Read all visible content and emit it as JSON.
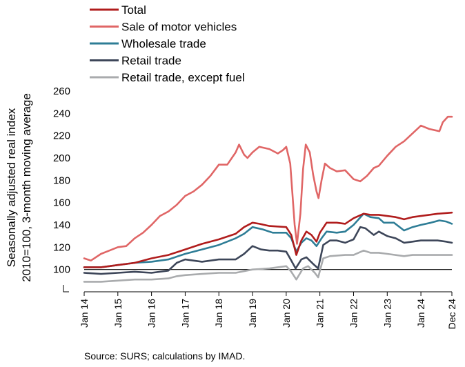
{
  "chart_data": {
    "type": "line",
    "ylabel_lines": [
      "Seasonally adjusted real index",
      "2010=100, 3-month moving average"
    ],
    "ylim": [
      80,
      260
    ],
    "y_ticks": [
      100,
      120,
      140,
      160,
      180,
      200,
      220,
      240,
      260
    ],
    "x_ticks": [
      "Jan 14",
      "Jan 15",
      "Jan 16",
      "Jan 17",
      "Jan 18",
      "Jan 19",
      "Jan 20",
      "Jan 21",
      "Jan 22",
      "Jan 23",
      "Jan 24",
      "Dec 24"
    ],
    "x_tick_positions": [
      2014.0,
      2015.0,
      2016.0,
      2017.0,
      2018.0,
      2019.0,
      2020.0,
      2021.0,
      2022.0,
      2023.0,
      2024.0,
      2024.92
    ],
    "xlim": [
      2014.0,
      2024.92
    ],
    "reference_line": 100,
    "legend_position": "top-left",
    "grid": false,
    "series": [
      {
        "name": "Total",
        "color": "#b01c1c",
        "points": [
          [
            2014.0,
            102
          ],
          [
            2014.5,
            102
          ],
          [
            2015.0,
            104
          ],
          [
            2015.5,
            106
          ],
          [
            2016.0,
            110
          ],
          [
            2016.5,
            113
          ],
          [
            2017.0,
            118
          ],
          [
            2017.5,
            123
          ],
          [
            2018.0,
            127
          ],
          [
            2018.5,
            132
          ],
          [
            2018.75,
            138
          ],
          [
            2019.0,
            142
          ],
          [
            2019.2,
            141
          ],
          [
            2019.5,
            139
          ],
          [
            2020.0,
            138
          ],
          [
            2020.15,
            131
          ],
          [
            2020.3,
            113
          ],
          [
            2020.45,
            126
          ],
          [
            2020.6,
            134
          ],
          [
            2020.75,
            131
          ],
          [
            2020.9,
            125
          ],
          [
            2021.0,
            133
          ],
          [
            2021.2,
            142
          ],
          [
            2021.5,
            142
          ],
          [
            2021.75,
            141
          ],
          [
            2022.0,
            146
          ],
          [
            2022.3,
            150
          ],
          [
            2022.5,
            149
          ],
          [
            2022.75,
            149
          ],
          [
            2023.0,
            148
          ],
          [
            2023.25,
            147
          ],
          [
            2023.5,
            145
          ],
          [
            2023.75,
            147
          ],
          [
            2024.0,
            148
          ],
          [
            2024.25,
            149
          ],
          [
            2024.5,
            150
          ],
          [
            2024.92,
            151
          ]
        ]
      },
      {
        "name": "Sale of motor vehicles",
        "color": "#e06666",
        "points": [
          [
            2014.0,
            110
          ],
          [
            2014.2,
            108
          ],
          [
            2014.5,
            114
          ],
          [
            2014.75,
            117
          ],
          [
            2015.0,
            120
          ],
          [
            2015.25,
            121
          ],
          [
            2015.5,
            128
          ],
          [
            2015.75,
            133
          ],
          [
            2016.0,
            140
          ],
          [
            2016.25,
            148
          ],
          [
            2016.5,
            152
          ],
          [
            2016.75,
            158
          ],
          [
            2017.0,
            166
          ],
          [
            2017.25,
            170
          ],
          [
            2017.5,
            176
          ],
          [
            2017.75,
            184
          ],
          [
            2018.0,
            194
          ],
          [
            2018.25,
            194
          ],
          [
            2018.5,
            205
          ],
          [
            2018.6,
            212
          ],
          [
            2018.75,
            203
          ],
          [
            2018.85,
            200
          ],
          [
            2019.0,
            205
          ],
          [
            2019.2,
            210
          ],
          [
            2019.5,
            208
          ],
          [
            2019.75,
            204
          ],
          [
            2019.9,
            207
          ],
          [
            2020.0,
            210
          ],
          [
            2020.12,
            195
          ],
          [
            2020.25,
            140
          ],
          [
            2020.32,
            123
          ],
          [
            2020.42,
            150
          ],
          [
            2020.5,
            190
          ],
          [
            2020.58,
            212
          ],
          [
            2020.7,
            205
          ],
          [
            2020.8,
            185
          ],
          [
            2020.9,
            170
          ],
          [
            2020.96,
            164
          ],
          [
            2021.05,
            180
          ],
          [
            2021.15,
            195
          ],
          [
            2021.3,
            191
          ],
          [
            2021.5,
            188
          ],
          [
            2021.75,
            189
          ],
          [
            2022.0,
            181
          ],
          [
            2022.2,
            179
          ],
          [
            2022.4,
            184
          ],
          [
            2022.6,
            191
          ],
          [
            2022.75,
            193
          ],
          [
            2023.0,
            202
          ],
          [
            2023.25,
            210
          ],
          [
            2023.5,
            215
          ],
          [
            2023.75,
            222
          ],
          [
            2024.0,
            229
          ],
          [
            2024.25,
            226
          ],
          [
            2024.55,
            224
          ],
          [
            2024.65,
            232
          ],
          [
            2024.8,
            237
          ],
          [
            2024.92,
            237
          ]
        ]
      },
      {
        "name": "Wholesale trade",
        "color": "#2e7d96",
        "points": [
          [
            2014.0,
            102
          ],
          [
            2014.5,
            102
          ],
          [
            2015.0,
            104
          ],
          [
            2015.5,
            106
          ],
          [
            2016.0,
            107
          ],
          [
            2016.5,
            109
          ],
          [
            2017.0,
            114
          ],
          [
            2017.5,
            118
          ],
          [
            2018.0,
            122
          ],
          [
            2018.5,
            128
          ],
          [
            2018.75,
            132
          ],
          [
            2019.0,
            138
          ],
          [
            2019.3,
            136
          ],
          [
            2019.6,
            133
          ],
          [
            2020.0,
            133
          ],
          [
            2020.15,
            128
          ],
          [
            2020.3,
            116
          ],
          [
            2020.45,
            124
          ],
          [
            2020.6,
            128
          ],
          [
            2020.75,
            126
          ],
          [
            2020.9,
            121
          ],
          [
            2021.05,
            128
          ],
          [
            2021.2,
            134
          ],
          [
            2021.5,
            133
          ],
          [
            2021.75,
            134
          ],
          [
            2022.0,
            140
          ],
          [
            2022.3,
            150
          ],
          [
            2022.5,
            147
          ],
          [
            2022.75,
            146
          ],
          [
            2022.9,
            142
          ],
          [
            2023.2,
            142
          ],
          [
            2023.5,
            135
          ],
          [
            2023.75,
            138
          ],
          [
            2024.0,
            140
          ],
          [
            2024.3,
            142
          ],
          [
            2024.55,
            144
          ],
          [
            2024.75,
            143
          ],
          [
            2024.92,
            141
          ]
        ]
      },
      {
        "name": "Retail trade",
        "color": "#3d4659",
        "points": [
          [
            2014.0,
            97
          ],
          [
            2014.5,
            96
          ],
          [
            2015.0,
            97
          ],
          [
            2015.5,
            98
          ],
          [
            2016.0,
            97
          ],
          [
            2016.5,
            99
          ],
          [
            2016.75,
            106
          ],
          [
            2017.0,
            109
          ],
          [
            2017.5,
            107
          ],
          [
            2018.0,
            109
          ],
          [
            2018.5,
            109
          ],
          [
            2018.75,
            114
          ],
          [
            2019.0,
            121
          ],
          [
            2019.25,
            118
          ],
          [
            2019.5,
            117
          ],
          [
            2019.75,
            117
          ],
          [
            2020.0,
            116
          ],
          [
            2020.15,
            108
          ],
          [
            2020.28,
            101
          ],
          [
            2020.45,
            109
          ],
          [
            2020.6,
            111
          ],
          [
            2020.8,
            105
          ],
          [
            2020.95,
            101
          ],
          [
            2021.1,
            122
          ],
          [
            2021.3,
            126
          ],
          [
            2021.5,
            126
          ],
          [
            2021.75,
            124
          ],
          [
            2022.0,
            127
          ],
          [
            2022.2,
            138
          ],
          [
            2022.35,
            137
          ],
          [
            2022.6,
            131
          ],
          [
            2022.75,
            134
          ],
          [
            2023.0,
            130
          ],
          [
            2023.25,
            128
          ],
          [
            2023.5,
            124
          ],
          [
            2023.75,
            125
          ],
          [
            2024.0,
            126
          ],
          [
            2024.25,
            126
          ],
          [
            2024.5,
            126
          ],
          [
            2024.75,
            125
          ],
          [
            2024.92,
            124
          ]
        ]
      },
      {
        "name": "Retail trade, except fuel",
        "color": "#a9abad",
        "points": [
          [
            2014.0,
            89
          ],
          [
            2014.5,
            89
          ],
          [
            2015.0,
            90
          ],
          [
            2015.5,
            91
          ],
          [
            2016.0,
            91
          ],
          [
            2016.5,
            92
          ],
          [
            2016.75,
            94
          ],
          [
            2017.0,
            95
          ],
          [
            2017.5,
            96
          ],
          [
            2018.0,
            97
          ],
          [
            2018.5,
            97
          ],
          [
            2019.0,
            100
          ],
          [
            2019.5,
            101
          ],
          [
            2020.0,
            103
          ],
          [
            2020.15,
            98
          ],
          [
            2020.3,
            91
          ],
          [
            2020.5,
            101
          ],
          [
            2020.65,
            103
          ],
          [
            2020.85,
            97
          ],
          [
            2020.95,
            93
          ],
          [
            2021.1,
            110
          ],
          [
            2021.3,
            112
          ],
          [
            2021.75,
            113
          ],
          [
            2022.0,
            113
          ],
          [
            2022.3,
            117
          ],
          [
            2022.5,
            115
          ],
          [
            2022.75,
            115
          ],
          [
            2023.0,
            114
          ],
          [
            2023.5,
            112
          ],
          [
            2023.75,
            113
          ],
          [
            2024.0,
            113
          ],
          [
            2024.5,
            113
          ],
          [
            2024.92,
            113
          ]
        ]
      }
    ]
  },
  "source_note": "Source: SURS; calculations by IMAD."
}
